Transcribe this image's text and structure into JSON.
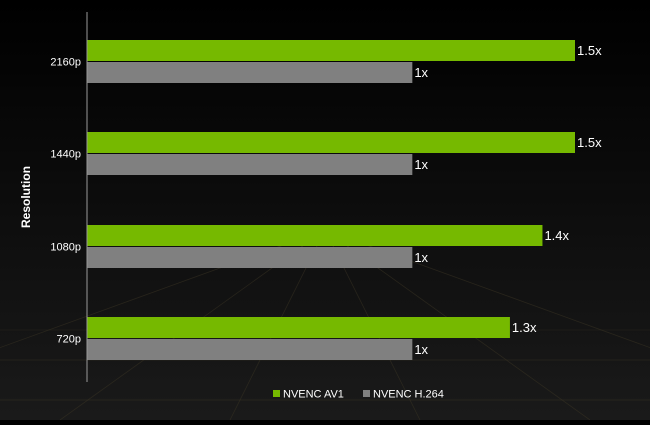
{
  "chart_data": {
    "type": "bar",
    "orientation": "horizontal",
    "title": "",
    "xlabel": "",
    "ylabel": "Resolution",
    "categories": [
      "2160p",
      "1440p",
      "1080p",
      "720p"
    ],
    "series": [
      {
        "name": "NVENC AV1",
        "color": "#76b900",
        "values": [
          1.5,
          1.5,
          1.4,
          1.3
        ],
        "labels": [
          "1.5x",
          "1.5x",
          "1.4x",
          "1.3x"
        ]
      },
      {
        "name": "NVENC H.264",
        "color": "#808080",
        "values": [
          1,
          1,
          1,
          1
        ],
        "labels": [
          "1x",
          "1x",
          "1x",
          "1x"
        ]
      }
    ],
    "xlim": [
      0,
      1.5
    ],
    "grid": false,
    "legend_position": "bottom",
    "background": "#000000",
    "text_color": "#ffffff"
  }
}
